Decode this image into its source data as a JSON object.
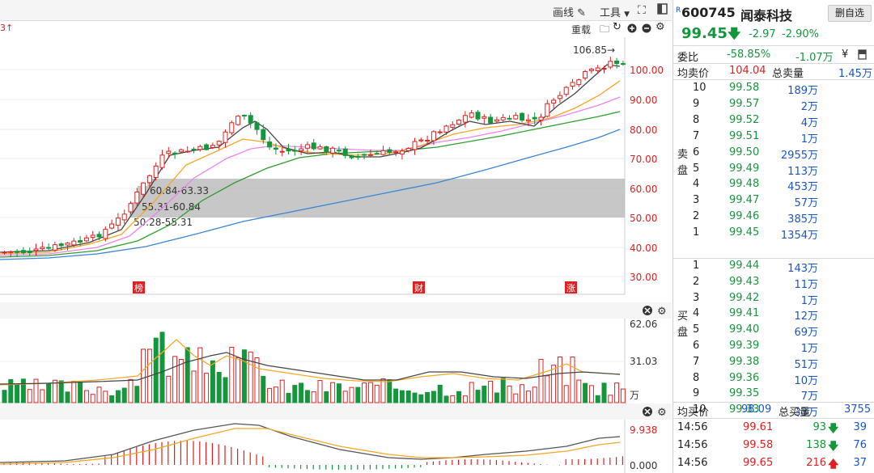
{
  "toolbar": {
    "draw_label": "画线",
    "tools_label": "工具",
    "left_fragment": "3",
    "reload_label": "重载"
  },
  "price_axis": [
    "100.00",
    "90.00",
    "80.00",
    "70.00",
    "60.00",
    "50.00",
    "40.00",
    "30.00"
  ],
  "high_label": "106.85→",
  "zones": [
    "60.84-63.33",
    "55.31-60.84",
    "50.28-55.31"
  ],
  "event_markers": [
    "榜",
    "财",
    "涨"
  ],
  "volume_axis": [
    "62.06",
    "31.03",
    "万"
  ],
  "macd_axis": [
    "9.938",
    "0.000"
  ],
  "stock": {
    "code_prefix": "R",
    "code": "600745",
    "name": "闻泰科技",
    "remove_button": "删自选",
    "price": "99.45",
    "change": "-2.97",
    "change_pct": "-2.90%"
  },
  "weibi": {
    "label": "委比",
    "value": "-58.85%",
    "diff": "-1.07万",
    "yen": "¥"
  },
  "ask_summary": {
    "label": "均卖价",
    "price": "104.04",
    "total_label": "总卖量",
    "total": "1.45万"
  },
  "side_labels": {
    "sell_1": "卖",
    "sell_2": "盘",
    "buy_1": "买",
    "buy_2": "盘"
  },
  "sell_levels": [
    {
      "level": "10",
      "price": "99.58",
      "volume": "189万"
    },
    {
      "level": "9",
      "price": "99.57",
      "volume": "2万"
    },
    {
      "level": "8",
      "price": "99.52",
      "volume": "4万"
    },
    {
      "level": "7",
      "price": "99.51",
      "volume": "1万"
    },
    {
      "level": "6",
      "price": "99.50",
      "volume": "2955万"
    },
    {
      "level": "5",
      "price": "99.49",
      "volume": "113万"
    },
    {
      "level": "4",
      "price": "99.48",
      "volume": "453万"
    },
    {
      "level": "3",
      "price": "99.47",
      "volume": "57万"
    },
    {
      "level": "2",
      "price": "99.46",
      "volume": "385万"
    },
    {
      "level": "1",
      "price": "99.45",
      "volume": "1354万"
    }
  ],
  "buy_levels": [
    {
      "level": "1",
      "price": "99.44",
      "volume": "143万"
    },
    {
      "level": "2",
      "price": "99.43",
      "volume": "11万"
    },
    {
      "level": "3",
      "price": "99.42",
      "volume": "1万"
    },
    {
      "level": "4",
      "price": "99.41",
      "volume": "12万"
    },
    {
      "level": "5",
      "price": "99.40",
      "volume": "69万"
    },
    {
      "level": "6",
      "price": "99.39",
      "volume": "1万"
    },
    {
      "level": "7",
      "price": "99.38",
      "volume": "51万"
    },
    {
      "level": "8",
      "price": "99.36",
      "volume": "10万"
    },
    {
      "level": "9",
      "price": "99.35",
      "volume": "7万"
    },
    {
      "level": "10",
      "price": "99.33",
      "volume": "33万"
    }
  ],
  "bid_summary": {
    "label": "均买价",
    "price": "98.09",
    "total_label": "总买量",
    "total": "3755"
  },
  "trades": [
    {
      "time": "14:56",
      "price": "99.61",
      "volume": "93",
      "dir": "down",
      "count": "39"
    },
    {
      "time": "14:56",
      "price": "99.58",
      "volume": "138",
      "dir": "down",
      "count": "76"
    },
    {
      "time": "14:56",
      "price": "99.65",
      "volume": "216",
      "dir": "up",
      "count": "37"
    }
  ],
  "colors": {
    "up": "#e02020",
    "down": "#14963c",
    "ma5": "#444444",
    "ma10": "#f5a623",
    "ma20": "#ee82ee",
    "ma30": "#2e9e2e",
    "ma60": "#3a86d6"
  }
}
